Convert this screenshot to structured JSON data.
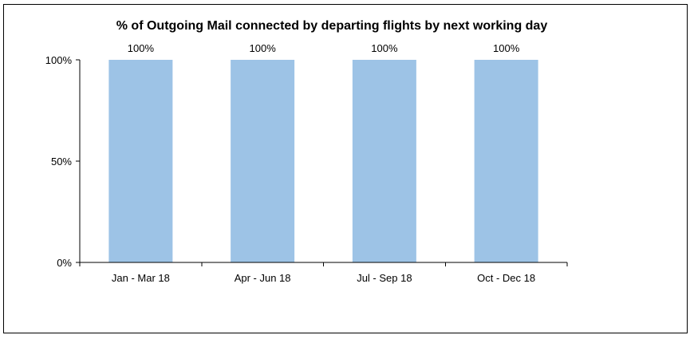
{
  "chart_data": {
    "type": "bar",
    "title": "% of Outgoing Mail connected by departing flights by next working day",
    "xlabel": "",
    "ylabel": "",
    "categories": [
      "Jan - Mar 18",
      "Apr - Jun 18",
      "Jul - Sep 18",
      "Oct - Dec 18"
    ],
    "values": [
      100,
      100,
      100,
      100
    ],
    "data_labels": [
      "100%",
      "100%",
      "100%",
      "100%"
    ],
    "ylim": [
      0,
      100
    ],
    "yticks": [
      0,
      50,
      100
    ],
    "ytick_labels": [
      "0%",
      "50%",
      "100%"
    ],
    "grid": false,
    "legend": "none",
    "bar_color": "#9DC3E6"
  }
}
